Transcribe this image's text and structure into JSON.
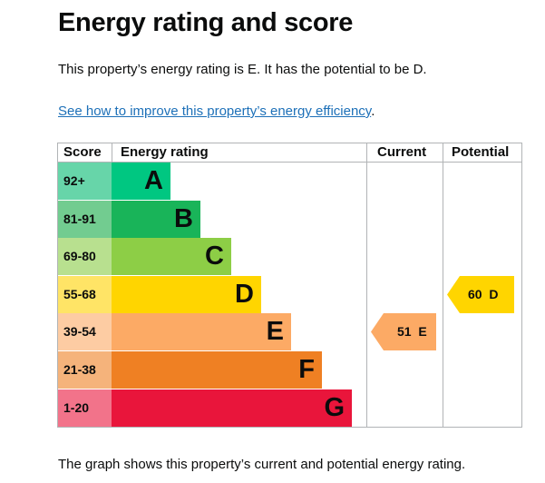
{
  "page": {
    "title": "Energy rating and score",
    "summary": "This property’s energy rating is E. It has the potential to be D.",
    "link_text": "See how to improve this property’s energy efficiency",
    "link_suffix": ".",
    "footer": "The graph shows this property’s current and potential energy rating."
  },
  "chart_data": {
    "type": "table",
    "headers": {
      "score": "Score",
      "rating": "Energy rating",
      "current": "Current",
      "potential": "Potential"
    },
    "bands": [
      {
        "range": "92+",
        "letter": "A",
        "color": "#00c781",
        "score_bg": "#67d5a9"
      },
      {
        "range": "81-91",
        "letter": "B",
        "color": "#19b459",
        "score_bg": "#72cc90"
      },
      {
        "range": "69-80",
        "letter": "C",
        "color": "#8dce46",
        "score_bg": "#b8e08f"
      },
      {
        "range": "55-68",
        "letter": "D",
        "color": "#ffd500",
        "score_bg": "#ffe466"
      },
      {
        "range": "39-54",
        "letter": "E",
        "color": "#fcaa65",
        "score_bg": "#fdcca3"
      },
      {
        "range": "21-38",
        "letter": "F",
        "color": "#ef8023",
        "score_bg": "#f5b37b"
      },
      {
        "range": "1-20",
        "letter": "G",
        "color": "#e9153b",
        "score_bg": "#f2738a"
      }
    ],
    "current": {
      "score": 51,
      "letter": "E",
      "label": "51  E",
      "color": "#fcaa65"
    },
    "potential": {
      "score": 60,
      "letter": "D",
      "label": "60  D",
      "color": "#ffd500"
    }
  }
}
